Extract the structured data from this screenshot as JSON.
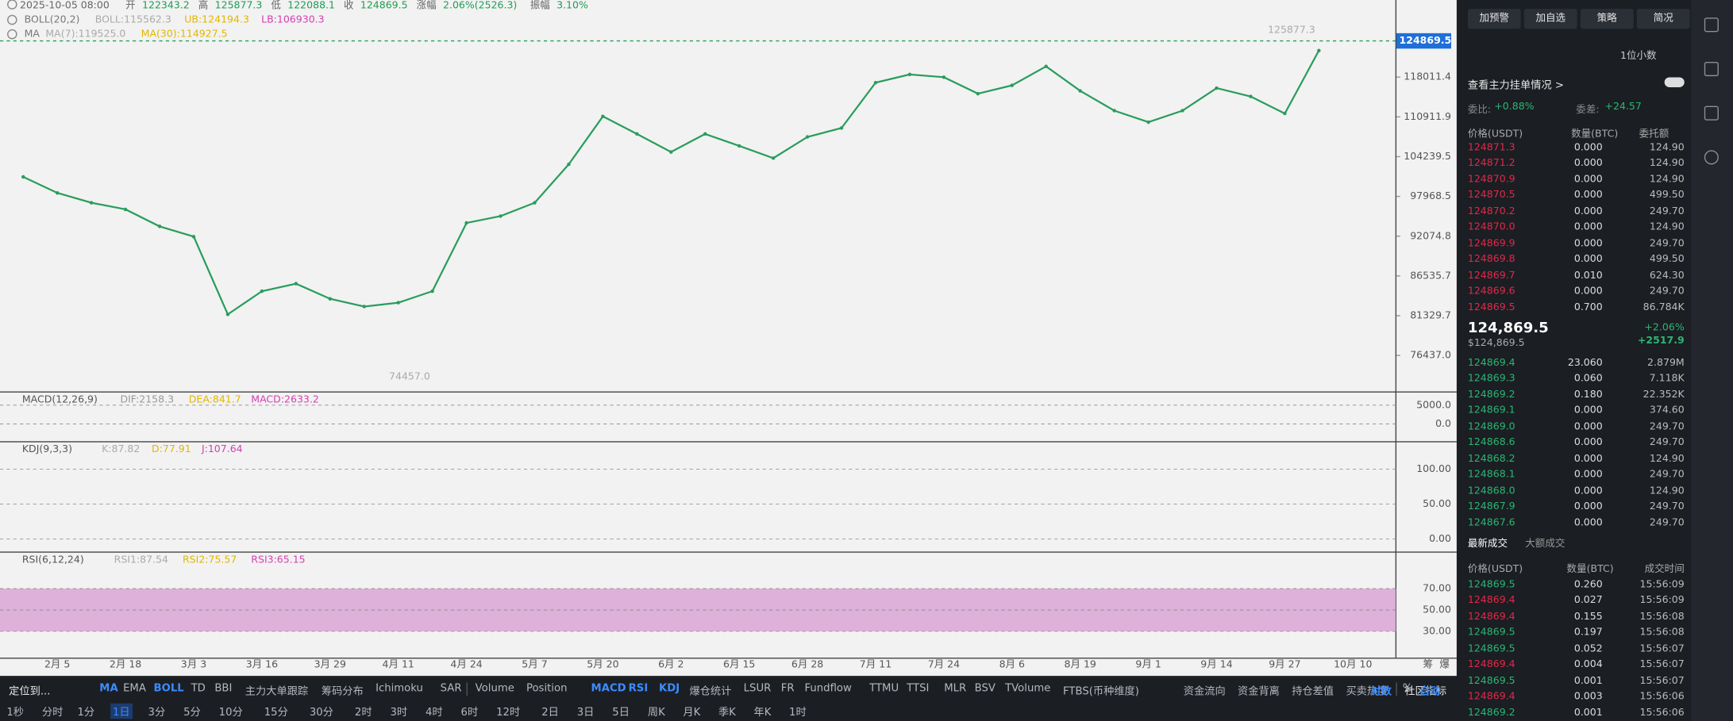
{
  "header": {
    "info": [
      "2025-10-05 08:00",
      "开",
      "122343.2",
      "高",
      "125877.3",
      "低",
      "122088.1",
      "收",
      "124869.5",
      "涨幅",
      "2.06%(2526.3)",
      "振幅",
      "3.10%"
    ],
    "boll": [
      "BOLL(20,2)",
      "BOLL:115562.3",
      "UB:124194.3",
      "LB:106930.3"
    ],
    "ma": [
      "MA",
      "MA(7):119525.0",
      "MA(30):114927.5"
    ]
  },
  "chart_data": {
    "type": "line",
    "log_scale": true,
    "color": "#2a9d5c",
    "categories": [
      null,
      "2月 5",
      null,
      "2月 18",
      null,
      "3月 3",
      null,
      "3月 16",
      null,
      "3月 29",
      null,
      "4月 11",
      null,
      "4月 24",
      null,
      "5月 7",
      null,
      "5月 20",
      null,
      "6月 2",
      null,
      "6月 15",
      null,
      "6月 28",
      null,
      "7月 11",
      null,
      "7月 24",
      null,
      "8月 6",
      null,
      "8月 19",
      null,
      "9月 1",
      null,
      "9月 14",
      null,
      "9月 27",
      null,
      "10月 10"
    ],
    "values": [
      101000,
      98500,
      97000,
      96000,
      93500,
      92000,
      81500,
      84500,
      85500,
      83500,
      82500,
      83000,
      84500,
      94000,
      95000,
      97000,
      103000,
      111000,
      108000,
      105000,
      108000,
      106000,
      104000,
      107500,
      109000,
      117000,
      118500,
      118000,
      115000,
      116500,
      120000,
      115500,
      112000,
      110000,
      112000,
      116000,
      114500,
      111500,
      123000,
      null
    ],
    "ylim": [
      72200,
      133100
    ],
    "yticks": [
      {
        "value": 76437,
        "label": "76437.0"
      },
      81329.7,
      86535.7,
      92074.8,
      97968.5,
      104239.5,
      110911.9,
      118011.4
    ],
    "last_price": {
      "value": 124869.5,
      "label": "124869.5"
    },
    "annotations": [
      {
        "value": 125877.3,
        "label": "125877.3"
      },
      {
        "value": 74457,
        "label": "74457.0"
      }
    ],
    "axis_corner": [
      "筹",
      "爆"
    ]
  },
  "indicators": [
    {
      "label": "MACD(12,26,9)",
      "readouts": [
        "DIF:2158.3",
        "DEA:841.7",
        "MACD:2633.2"
      ],
      "ylim": [
        -4700,
        7900
      ],
      "yticks": [
        {
          "value": 5000,
          "label": "5000.0"
        },
        {
          "value": 0,
          "label": "0.0"
        }
      ]
    },
    {
      "label": "KDJ(9,3,3)",
      "readouts": [
        "K:87.82",
        "D:77.91",
        "J:107.64"
      ],
      "ylim": [
        -19,
        136
      ],
      "yticks": [
        {
          "value": 100,
          "label": "100.00"
        },
        {
          "value": 50,
          "label": "50.00"
        },
        {
          "value": 0,
          "label": "0.00"
        }
      ]
    },
    {
      "label": "RSI(6,12,24)",
      "readouts": [
        "RSI1:87.54",
        "RSI2:75.57",
        "RSI3:65.15"
      ],
      "ylim": [
        6,
        102
      ],
      "yticks": [
        {
          "value": 70,
          "label": "70.00"
        },
        {
          "value": 50,
          "label": "50.00"
        },
        {
          "value": 30,
          "label": "30.00"
        }
      ]
    }
  ],
  "toolbar": {
    "row1": [
      {
        "text": "定位到...",
        "active": false
      },
      {
        "text": "MA",
        "active": true
      },
      {
        "text": "EMA",
        "active": false
      },
      {
        "text": "BOLL",
        "active": true
      },
      {
        "text": "TD",
        "active": false
      },
      {
        "text": "BBI",
        "active": false
      },
      {
        "text": "主力大单跟踪",
        "active": false
      },
      {
        "text": "筹码分布",
        "active": false
      },
      {
        "text": "Ichimoku",
        "active": false
      },
      {
        "text": "SAR",
        "active": false
      },
      {
        "text": "Volume",
        "active": false
      },
      {
        "text": "Position",
        "active": false
      },
      {
        "text": "MACD",
        "active": true
      },
      {
        "text": "RSI",
        "active": true
      },
      {
        "text": "KDJ",
        "active": true
      },
      {
        "text": "爆仓统计",
        "active": false
      },
      {
        "text": "LSUR",
        "active": false
      },
      {
        "text": "FR",
        "active": false
      },
      {
        "text": "Fundflow",
        "active": false
      },
      {
        "text": "TTMU",
        "active": false
      },
      {
        "text": "TTSI",
        "active": false
      },
      {
        "text": "MLR",
        "active": false
      },
      {
        "text": "BSV",
        "active": false
      },
      {
        "text": "TVolume",
        "active": false
      },
      {
        "text": "FTBS(币种维度)",
        "active": false
      },
      {
        "text": "资金流向",
        "active": false
      },
      {
        "text": "资金背离",
        "active": false
      },
      {
        "text": "持仓差值",
        "active": false
      },
      {
        "text": "买卖热度",
        "active": false
      },
      {
        "text": "社区指标",
        "active": false
      },
      {
        "text": "对数",
        "active": true
      },
      {
        "text": "%",
        "active": false
      },
      {
        "text": "自动",
        "active": true
      }
    ],
    "row2": [
      {
        "text": "1秒",
        "active": false
      },
      {
        "text": "分时",
        "active": false
      },
      {
        "text": "1分",
        "active": false
      },
      {
        "text": "1日",
        "active": true
      },
      {
        "text": "3分",
        "active": false
      },
      {
        "text": "5分",
        "active": false
      },
      {
        "text": "10分",
        "active": false
      },
      {
        "text": "15分",
        "active": false
      },
      {
        "text": "30分",
        "active": false
      },
      {
        "text": "2时",
        "active": false
      },
      {
        "text": "3时",
        "active": false
      },
      {
        "text": "4时",
        "active": false
      },
      {
        "text": "6时",
        "active": false
      },
      {
        "text": "12时",
        "active": false
      },
      {
        "text": "2日",
        "active": false
      },
      {
        "text": "3日",
        "active": false
      },
      {
        "text": "5日",
        "active": false
      },
      {
        "text": "周K",
        "active": false
      },
      {
        "text": "月K",
        "active": false
      },
      {
        "text": "季K",
        "active": false
      },
      {
        "text": "年K",
        "active": false
      },
      {
        "text": "1时",
        "active": false
      }
    ]
  },
  "side": {
    "buttons": [
      "加预警",
      "加自选",
      "策略",
      "简况"
    ],
    "precision": "1位小数",
    "main_orders": "查看主力挂单情况 >",
    "ratio_label": "委比:",
    "ratio": "+0.88%",
    "diff_label": "委差:",
    "diff": "+24.57",
    "book_header": [
      "价格(USDT)",
      "数量(BTC)",
      "委托额"
    ],
    "asks": [
      [
        "124871.3",
        "0.000",
        "124.90"
      ],
      [
        "124871.2",
        "0.000",
        "124.90"
      ],
      [
        "124870.9",
        "0.000",
        "124.90"
      ],
      [
        "124870.5",
        "0.000",
        "499.50"
      ],
      [
        "124870.2",
        "0.000",
        "249.70"
      ],
      [
        "124870.0",
        "0.000",
        "124.90"
      ],
      [
        "124869.9",
        "0.000",
        "249.70"
      ],
      [
        "124869.8",
        "0.000",
        "499.50"
      ],
      [
        "124869.7",
        "0.010",
        "624.30"
      ],
      [
        "124869.6",
        "0.000",
        "249.70"
      ],
      [
        "124869.5",
        "0.700",
        "86.784K"
      ]
    ],
    "last": "124,869.5",
    "last_usd": "$124,869.5",
    "change_pct": "+2.06%",
    "change": "+2517.9",
    "bids": [
      [
        "124869.4",
        "23.060",
        "2.879M"
      ],
      [
        "124869.3",
        "0.060",
        "7.118K"
      ],
      [
        "124869.2",
        "0.180",
        "22.352K"
      ],
      [
        "124869.1",
        "0.000",
        "374.60"
      ],
      [
        "124869.0",
        "0.000",
        "249.70"
      ],
      [
        "124868.6",
        "0.000",
        "249.70"
      ],
      [
        "124868.2",
        "0.000",
        "124.90"
      ],
      [
        "124868.1",
        "0.000",
        "249.70"
      ],
      [
        "124868.0",
        "0.000",
        "124.90"
      ],
      [
        "124867.9",
        "0.000",
        "249.70"
      ],
      [
        "124867.6",
        "0.000",
        "249.70"
      ]
    ],
    "tabs": [
      "最新成交",
      "大额成交"
    ],
    "trade_header": [
      "价格(USDT)",
      "数量(BTC)",
      "成交时间"
    ],
    "trades": [
      {
        "side": "buy",
        "row": [
          "124869.5",
          "0.260",
          "15:56:09"
        ]
      },
      {
        "side": "sell",
        "row": [
          "124869.4",
          "0.027",
          "15:56:09"
        ]
      },
      {
        "side": "sell",
        "row": [
          "124869.4",
          "0.155",
          "15:56:08"
        ]
      },
      {
        "side": "buy",
        "row": [
          "124869.5",
          "0.197",
          "15:56:08"
        ]
      },
      {
        "side": "buy",
        "row": [
          "124869.5",
          "0.052",
          "15:56:07"
        ]
      },
      {
        "side": "sell",
        "row": [
          "124869.4",
          "0.004",
          "15:56:07"
        ]
      },
      {
        "side": "buy",
        "row": [
          "124869.5",
          "0.001",
          "15:56:07"
        ]
      },
      {
        "side": "sell",
        "row": [
          "124869.4",
          "0.003",
          "15:56:06"
        ]
      },
      {
        "side": "buy",
        "row": [
          "124869.2",
          "0.001",
          "15:56:06"
        ]
      }
    ]
  }
}
